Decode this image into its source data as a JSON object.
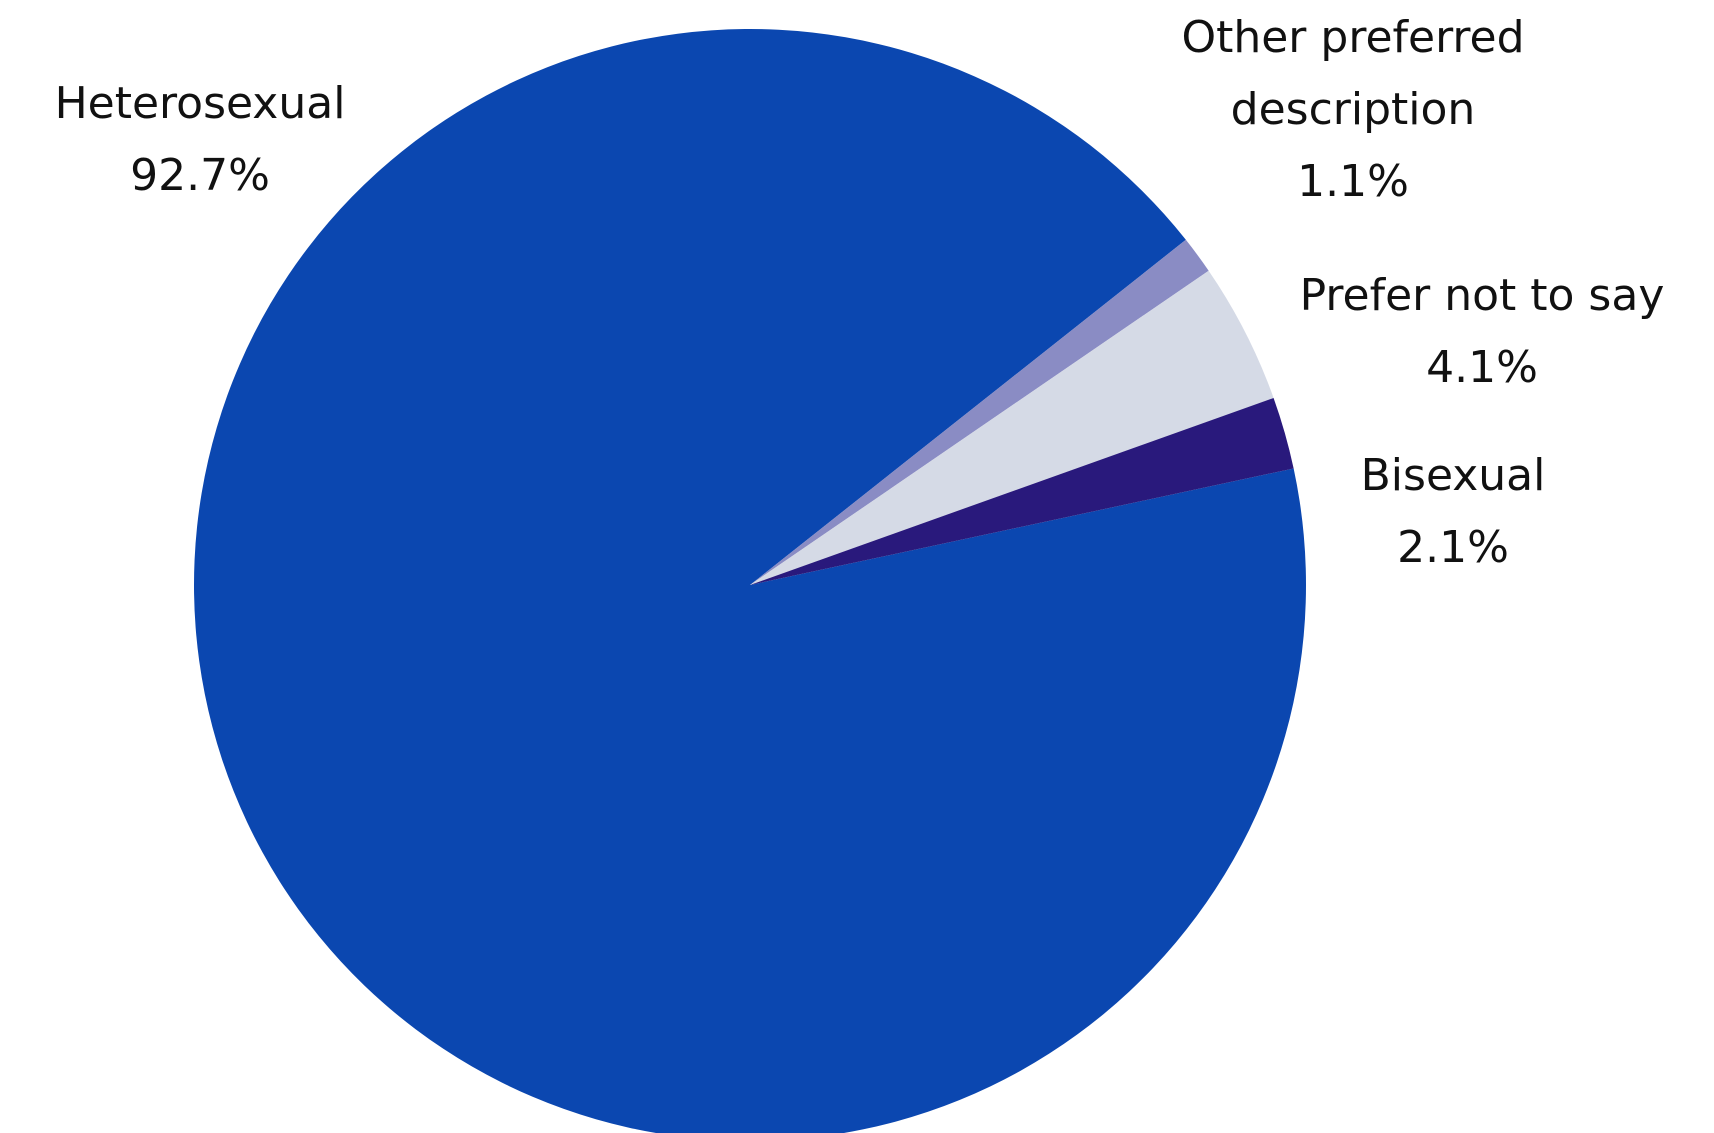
{
  "chart_data": {
    "type": "pie",
    "title": "",
    "slices": [
      {
        "label": "Heterosexual",
        "label_lines": [
          "Heterosexual"
        ],
        "value": 92.7,
        "value_label": "92.7%",
        "color": "#0b47b0"
      },
      {
        "label": "Other preferred description",
        "label_lines": [
          "Other preferred",
          "description"
        ],
        "value": 1.1,
        "value_label": "1.1%",
        "color": "#8a8cc4"
      },
      {
        "label": "Prefer not to say",
        "label_lines": [
          "Prefer not to say"
        ],
        "value": 4.1,
        "value_label": "4.1%",
        "color": "#d5dae6"
      },
      {
        "label": "Bisexual",
        "label_lines": [
          "Bisexual"
        ],
        "value": 2.1,
        "value_label": "2.1%",
        "color": "#29197c"
      }
    ]
  }
}
